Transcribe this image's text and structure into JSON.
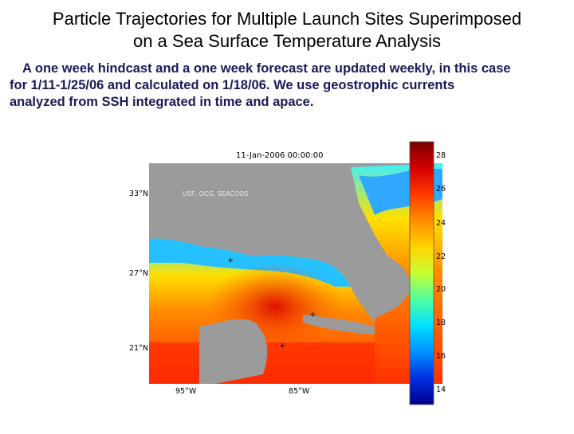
{
  "slide": {
    "title_line1": "Particle Trajectories for Multiple Launch Sites Superimposed",
    "title_line2": "on a Sea Surface Temperature Analysis",
    "body_line1": "A one week hindcast and a one week forecast are updated weekly, in this case",
    "body_line2": "for 1/11-1/25/06 and calculated on 1/18/06.  We use geostrophic currents",
    "body_line3": "analyzed from SSH integrated in time and apace."
  },
  "map": {
    "timestamp": "11-Jan-2006 00:00:00",
    "credit": "USF, OCG, SEACOOS",
    "lat_labels": [
      "33°N",
      "27°N",
      "21°N"
    ],
    "lon_labels": [
      "95°W",
      "85°W"
    ]
  },
  "colorbar": {
    "ticks": [
      "28",
      "26",
      "24",
      "22",
      "20",
      "18",
      "16",
      "14"
    ],
    "colors": [
      "#7a0000",
      "#d40000",
      "#ff3a00",
      "#ff8c00",
      "#ffd400",
      "#c8ff30",
      "#50ffa0",
      "#00e0ff",
      "#0090ff",
      "#0030e0",
      "#00008c"
    ]
  },
  "launch_sites": {
    "symbol": "+"
  }
}
